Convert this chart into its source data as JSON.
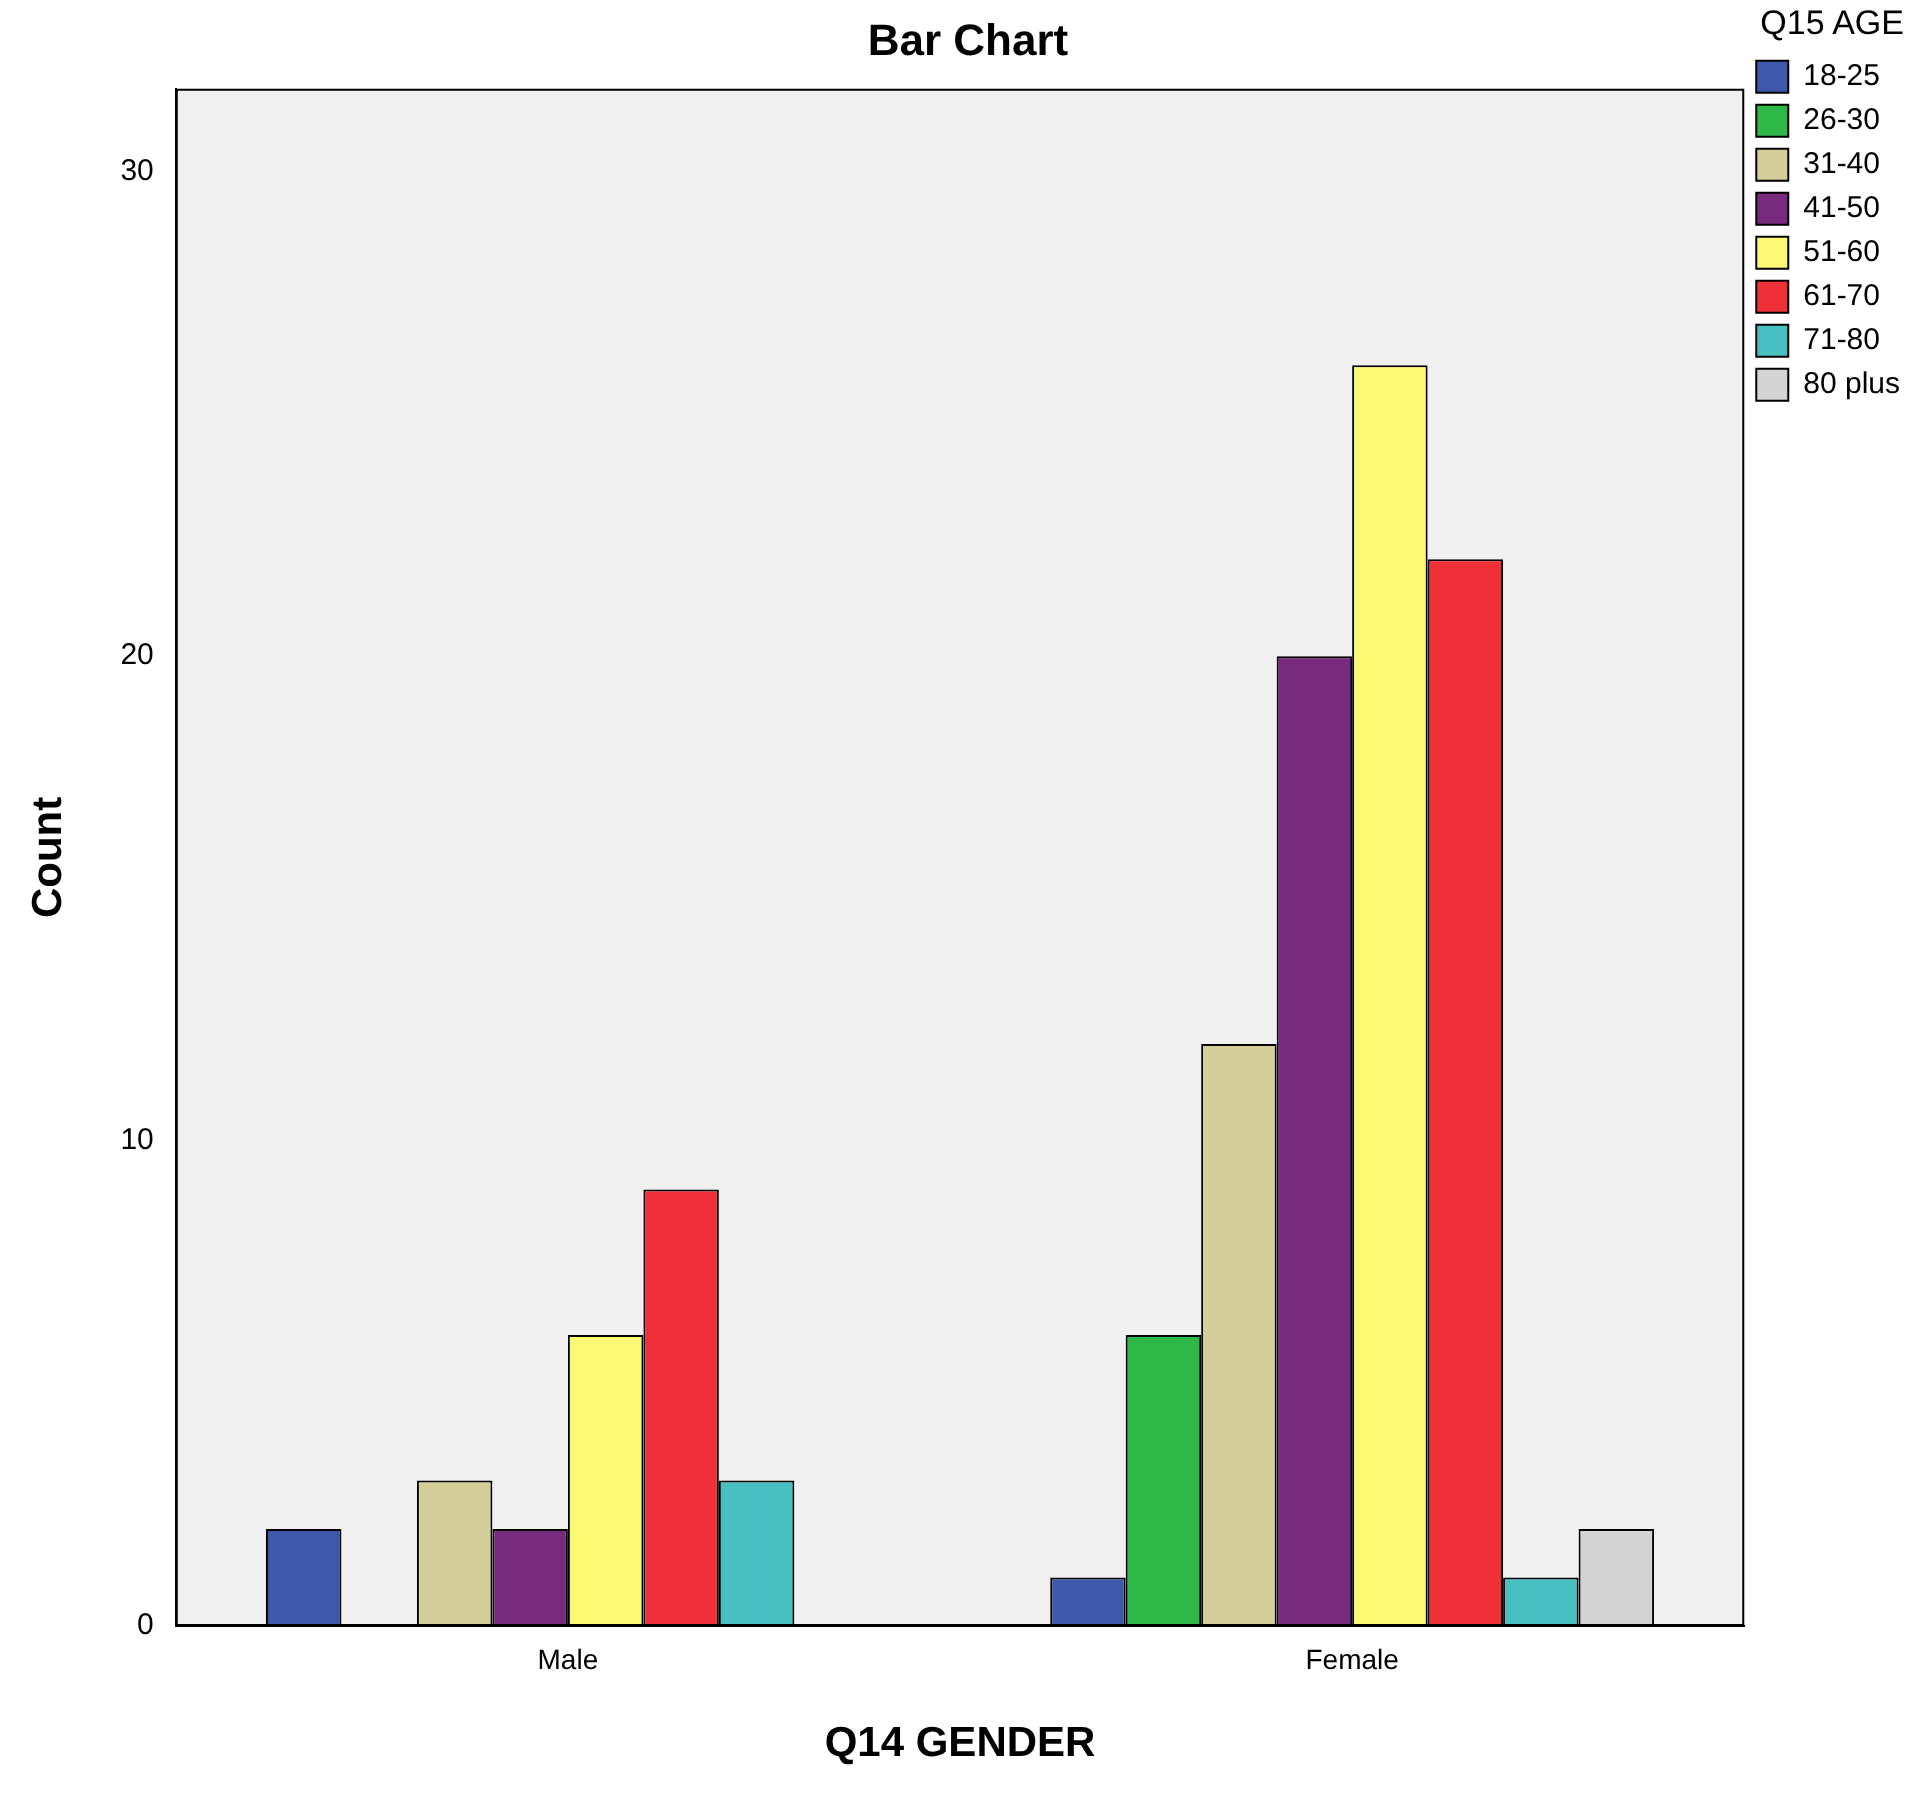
{
  "chart_data": {
    "type": "bar",
    "title": "Bar Chart",
    "xlabel": "Q14 GENDER",
    "ylabel": "Count",
    "legend_title": "Q15 AGE",
    "categories": [
      "Male",
      "Female"
    ],
    "series": [
      {
        "name": "18-25",
        "color": "#3e58ac",
        "values": [
          2,
          1
        ]
      },
      {
        "name": "26-30",
        "color": "#2eb848",
        "values": [
          0,
          6
        ]
      },
      {
        "name": "31-40",
        "color": "#d4cf98",
        "values": [
          3,
          12
        ]
      },
      {
        "name": "41-50",
        "color": "#782a7c",
        "values": [
          2,
          20
        ]
      },
      {
        "name": "51-60",
        "color": "#fbf873",
        "values": [
          6,
          26
        ]
      },
      {
        "name": "61-70",
        "color": "#ef3038",
        "values": [
          9,
          22
        ]
      },
      {
        "name": "71-80",
        "color": "#48c0c1",
        "values": [
          3,
          1
        ]
      },
      {
        "name": "80 plus",
        "color": "#d3d3d3",
        "values": [
          0,
          2
        ]
      }
    ],
    "ylim": [
      0,
      31.7
    ],
    "yticks": [
      0,
      10,
      20,
      30
    ],
    "grid": false,
    "legend": "right"
  }
}
